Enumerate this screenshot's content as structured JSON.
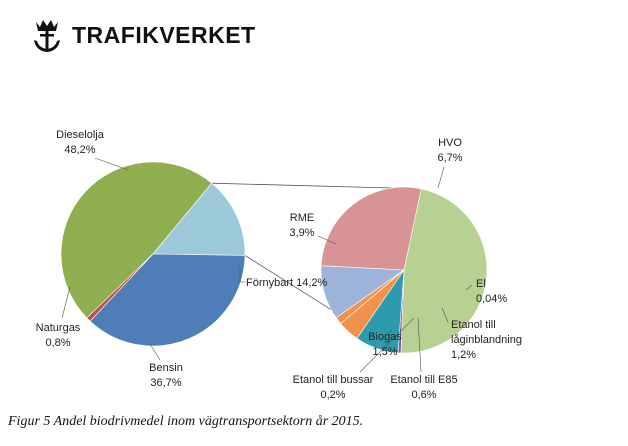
{
  "brand": {
    "name": "TRAFIKVERKET",
    "logo_icon": "crown-anchor-icon"
  },
  "caption": "Figur 5 Andel biodrivmedel inom vägtransportsektorn år 2015.",
  "colors": {
    "diesel": "#8FAE50",
    "bensin": "#4F7DB8",
    "fornybart": "#9CC9DA",
    "naturgas": "#C0504D",
    "hvo": "#B6D191",
    "el": "#7A5A9E",
    "etanol_lag": "#2E9AAE",
    "etanol_e85": "#F0914C",
    "etanol_buss": "#F0914C",
    "biogas": "#9DB3DA",
    "rme": "#D89494",
    "line": "#555555"
  },
  "chart_data": [
    {
      "type": "pie",
      "slices": [
        {
          "label": "Dieselolja",
          "value_label": "48,2%",
          "value": 48.2,
          "color_key": "diesel"
        },
        {
          "label": "Förnybart",
          "value_label": "14,2%",
          "value": 14.2,
          "color_key": "fornybart"
        },
        {
          "label": "Bensin",
          "value_label": "36,7%",
          "value": 36.7,
          "color_key": "bensin"
        },
        {
          "label": "Naturgas",
          "value_label": "0,8%",
          "value": 0.8,
          "color_key": "naturgas"
        }
      ]
    },
    {
      "type": "pie",
      "slices": [
        {
          "label": "HVO",
          "value_label": "6,7%",
          "value": 6.7,
          "color_key": "hvo"
        },
        {
          "label": "El",
          "value_label": "0,04%",
          "value": 0.04,
          "color_key": "el"
        },
        {
          "label": "Etanol till låginblandning",
          "value_label": "1,2%",
          "value": 1.2,
          "color_key": "etanol_lag"
        },
        {
          "label": "Etanol till E85",
          "value_label": "0,6%",
          "value": 0.6,
          "color_key": "etanol_e85"
        },
        {
          "label": "Etanol till bussar",
          "value_label": "0,2%",
          "value": 0.2,
          "color_key": "etanol_buss"
        },
        {
          "label": "Biogas",
          "value_label": "1,5%",
          "value": 1.5,
          "color_key": "biogas"
        },
        {
          "label": "RME",
          "value_label": "3,9%",
          "value": 3.9,
          "color_key": "rme"
        }
      ]
    }
  ]
}
